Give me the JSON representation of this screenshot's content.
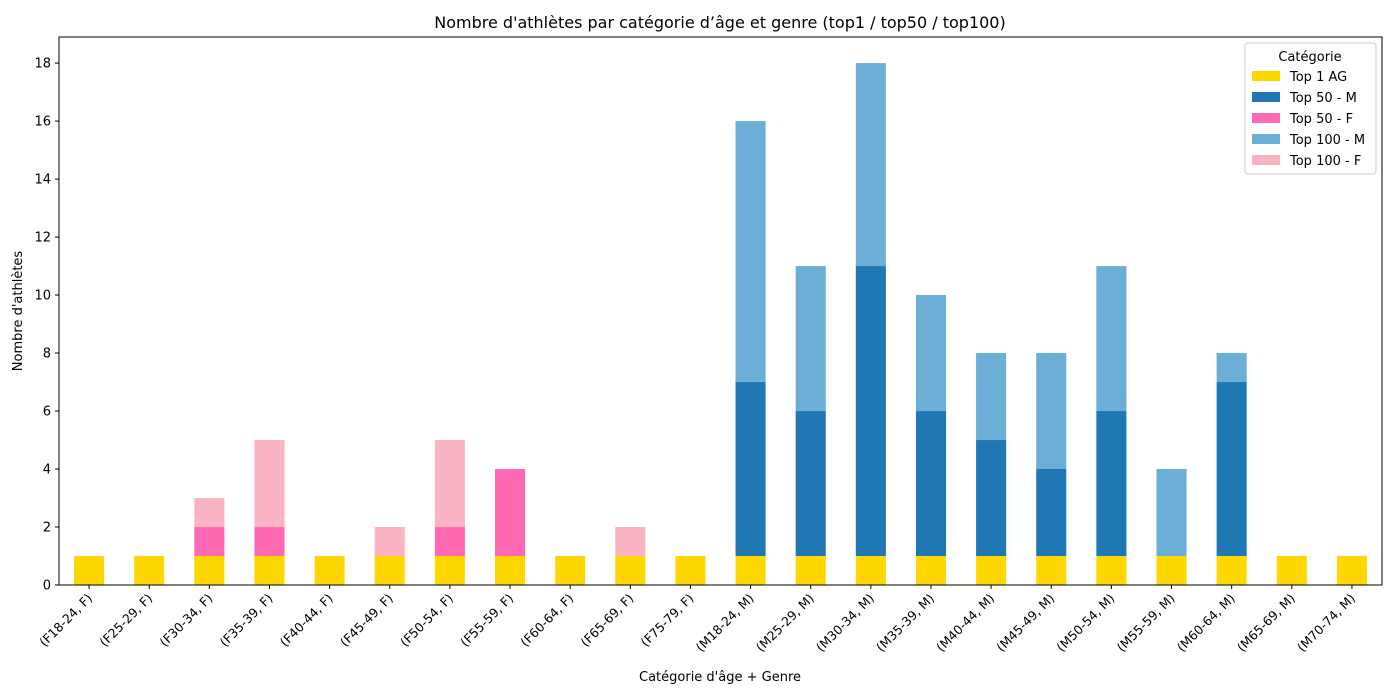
{
  "chart_data": {
    "type": "bar",
    "stacked": true,
    "title": "Nombre d'athlètes par catégorie d’âge et genre (top1 / top50 / top100)",
    "xlabel": "Catégorie d'âge + Genre",
    "ylabel": "Nombre d'athlètes",
    "ylim": [
      0,
      18.9
    ],
    "yticks": [
      0,
      2,
      4,
      6,
      8,
      10,
      12,
      14,
      16,
      18
    ],
    "grid": false,
    "legend": {
      "title": "Catégorie",
      "position": "top-right"
    },
    "categories": [
      "(F18-24, F)",
      "(F25-29, F)",
      "(F30-34, F)",
      "(F35-39, F)",
      "(F40-44, F)",
      "(F45-49, F)",
      "(F50-54, F)",
      "(F55-59, F)",
      "(F60-64, F)",
      "(F65-69, F)",
      "(F75-79, F)",
      "(M18-24, M)",
      "(M25-29, M)",
      "(M30-34, M)",
      "(M35-39, M)",
      "(M40-44, M)",
      "(M45-49, M)",
      "(M50-54, M)",
      "(M55-59, M)",
      "(M60-64, M)",
      "(M65-69, M)",
      "(M70-74, M)"
    ],
    "series": [
      {
        "name": "Top 1 AG",
        "color": "#ffd700",
        "values": [
          1,
          1,
          1,
          1,
          1,
          1,
          1,
          1,
          1,
          1,
          1,
          1,
          1,
          1,
          1,
          1,
          1,
          1,
          1,
          1,
          1,
          1
        ]
      },
      {
        "name": "Top 50 - M",
        "color": "#1f77b4",
        "values": [
          0,
          0,
          0,
          0,
          0,
          0,
          0,
          0,
          0,
          0,
          0,
          6,
          5,
          10,
          5,
          4,
          3,
          5,
          0,
          6,
          0,
          0
        ]
      },
      {
        "name": "Top 50 - F",
        "color": "#ff69b4",
        "values": [
          0,
          0,
          1,
          1,
          0,
          0,
          1,
          3,
          0,
          0,
          0,
          0,
          0,
          0,
          0,
          0,
          0,
          0,
          0,
          0,
          0,
          0
        ]
      },
      {
        "name": "Top 100 - M",
        "color": "#6baed6",
        "values": [
          0,
          0,
          0,
          0,
          0,
          0,
          0,
          0,
          0,
          0,
          0,
          9,
          5,
          7,
          4,
          3,
          4,
          5,
          3,
          1,
          0,
          0
        ]
      },
      {
        "name": "Top 100 - F",
        "color": "#fbb4c4",
        "values": [
          0,
          0,
          1,
          3,
          0,
          1,
          3,
          0,
          0,
          1,
          0,
          0,
          0,
          0,
          0,
          0,
          0,
          0,
          0,
          0,
          0,
          0
        ]
      }
    ]
  }
}
